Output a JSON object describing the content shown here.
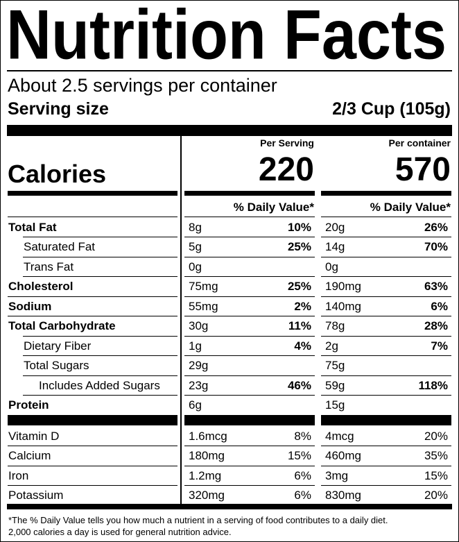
{
  "header": {
    "title": "Nutrition Facts",
    "servings": "About 2.5 servings per container",
    "serving_size_label": "Serving size",
    "serving_size": "2/3 Cup (105g)"
  },
  "columns": [
    "Per Serving",
    "Per container"
  ],
  "calories": {
    "label": "Calories",
    "values": [
      "220",
      "570"
    ]
  },
  "daily_value_header": "% Daily Value*",
  "nutrients": [
    {
      "name": "Total Fat",
      "bold": true,
      "indent": 0,
      "amounts": [
        "8g",
        "20g"
      ],
      "dv": [
        "10%",
        "26%"
      ]
    },
    {
      "name": "Saturated Fat",
      "bold": false,
      "indent": 1,
      "amounts": [
        "5g",
        "14g"
      ],
      "dv": [
        "25%",
        "70%"
      ]
    },
    {
      "name": "Trans Fat",
      "bold": false,
      "indent": 1,
      "amounts": [
        "0g",
        "0g"
      ]
    },
    {
      "name": "Cholesterol",
      "bold": true,
      "indent": 0,
      "amounts": [
        "75mg",
        "190mg"
      ],
      "dv": [
        "25%",
        "63%"
      ]
    },
    {
      "name": "Sodium",
      "bold": true,
      "indent": 0,
      "amounts": [
        "55mg",
        "140mg"
      ],
      "dv": [
        "2%",
        "6%"
      ]
    },
    {
      "name": "Total Carbohydrate",
      "bold": true,
      "indent": 0,
      "amounts": [
        "30g",
        "78g"
      ],
      "dv": [
        "11%",
        "28%"
      ]
    },
    {
      "name": "Dietary Fiber",
      "bold": false,
      "indent": 1,
      "amounts": [
        "1g",
        "2g"
      ],
      "dv": [
        "4%",
        "7%"
      ]
    },
    {
      "name": "Total Sugars",
      "bold": false,
      "indent": 1,
      "amounts": [
        "29g",
        "75g"
      ]
    },
    {
      "name": "Includes Added Sugars",
      "bold": false,
      "indent": 2,
      "amounts": [
        "23g",
        "59g"
      ],
      "dv": [
        "46%",
        "118%"
      ]
    },
    {
      "name": "Protein",
      "bold": true,
      "indent": 0,
      "amounts": [
        "6g",
        "15g"
      ]
    }
  ],
  "vitamins": [
    {
      "name": "Vitamin D",
      "amounts": [
        "1.6mcg",
        "4mcg"
      ],
      "dv": [
        "8%",
        "20%"
      ]
    },
    {
      "name": "Calcium",
      "amounts": [
        "180mg",
        "460mg"
      ],
      "dv": [
        "15%",
        "35%"
      ]
    },
    {
      "name": "Iron",
      "amounts": [
        "1.2mg",
        "3mg"
      ],
      "dv": [
        "6%",
        "15%"
      ]
    },
    {
      "name": "Potassium",
      "amounts": [
        "320mg",
        "830mg"
      ],
      "dv": [
        "6%",
        "20%"
      ]
    }
  ],
  "footnote": [
    "*The % Daily Value tells you how much a nutrient in a serving of food contributes to a daily diet.",
    "2,000 calories a day is used for general nutrition advice."
  ]
}
